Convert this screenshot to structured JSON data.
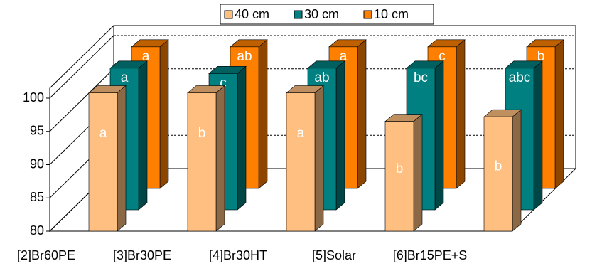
{
  "chart_data": {
    "type": "bar3d",
    "categories": [
      "[2]Br60PE",
      "[3]Br30PE",
      "[4]Br30HT",
      "[5]Solar",
      "[6]Br15PE+S"
    ],
    "series": [
      {
        "name": "40 cm",
        "color": "#ffbf80",
        "values": [
          100.8,
          100.8,
          100.8,
          96.5,
          97.2
        ],
        "letters": [
          "a",
          "b",
          "a",
          "b",
          "b"
        ]
      },
      {
        "name": "30 cm",
        "color": "#008080",
        "values": [
          101.3,
          100.5,
          101.3,
          101.3,
          101.3
        ],
        "letters": [
          "a",
          "c",
          "ab",
          "bc",
          "abc"
        ]
      },
      {
        "name": "10 cm",
        "color": "#ff8000",
        "values": [
          101.3,
          101.3,
          101.3,
          101.3,
          101.3
        ],
        "letters": [
          "a",
          "ab",
          "a",
          "c",
          "b"
        ]
      }
    ],
    "ylim": [
      80,
      101.5
    ],
    "yticks": [
      80,
      85,
      90,
      95,
      100
    ],
    "grid": true,
    "legend": "top"
  }
}
